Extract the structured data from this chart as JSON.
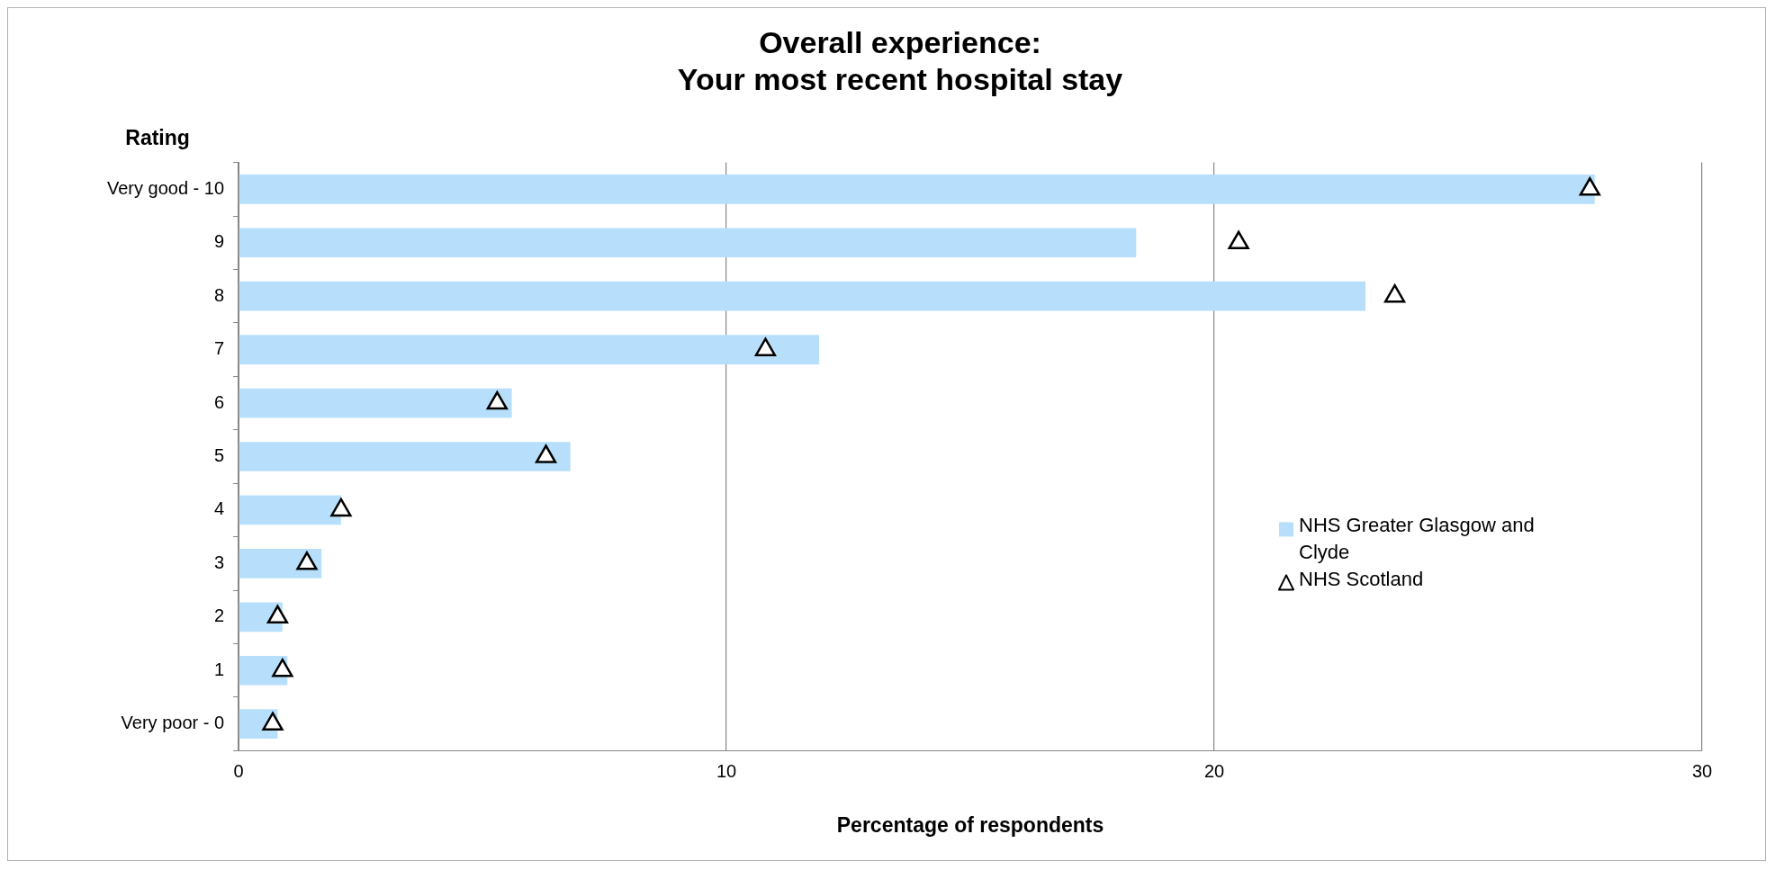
{
  "chart_data": {
    "type": "bar",
    "orientation": "horizontal",
    "title": "Overall experience:\nYour most recent hospital stay",
    "ylabel": "Rating",
    "xlabel": "Percentage of respondents",
    "categories": [
      "Very good - 10",
      "9",
      "8",
      "7",
      "6",
      "5",
      "4",
      "3",
      "2",
      "1",
      "Very poor - 0"
    ],
    "series": [
      {
        "name": "NHS Greater Glasgow and Clyde",
        "color": "#b7dffb",
        "values": [
          27.8,
          18.4,
          23.1,
          11.9,
          5.6,
          6.8,
          2.1,
          1.7,
          0.9,
          1.0,
          0.8
        ]
      },
      {
        "name": "NHS Scotland",
        "type": "scatter",
        "color": "#000000",
        "marker": "triangle",
        "values": [
          27.7,
          20.5,
          23.7,
          10.8,
          5.3,
          6.3,
          2.1,
          1.4,
          0.8,
          0.9,
          0.7
        ]
      }
    ],
    "xlim": [
      0,
      30
    ],
    "xticks": [
      0,
      10,
      20,
      30
    ],
    "grid": "x",
    "legend": "bottom right"
  }
}
